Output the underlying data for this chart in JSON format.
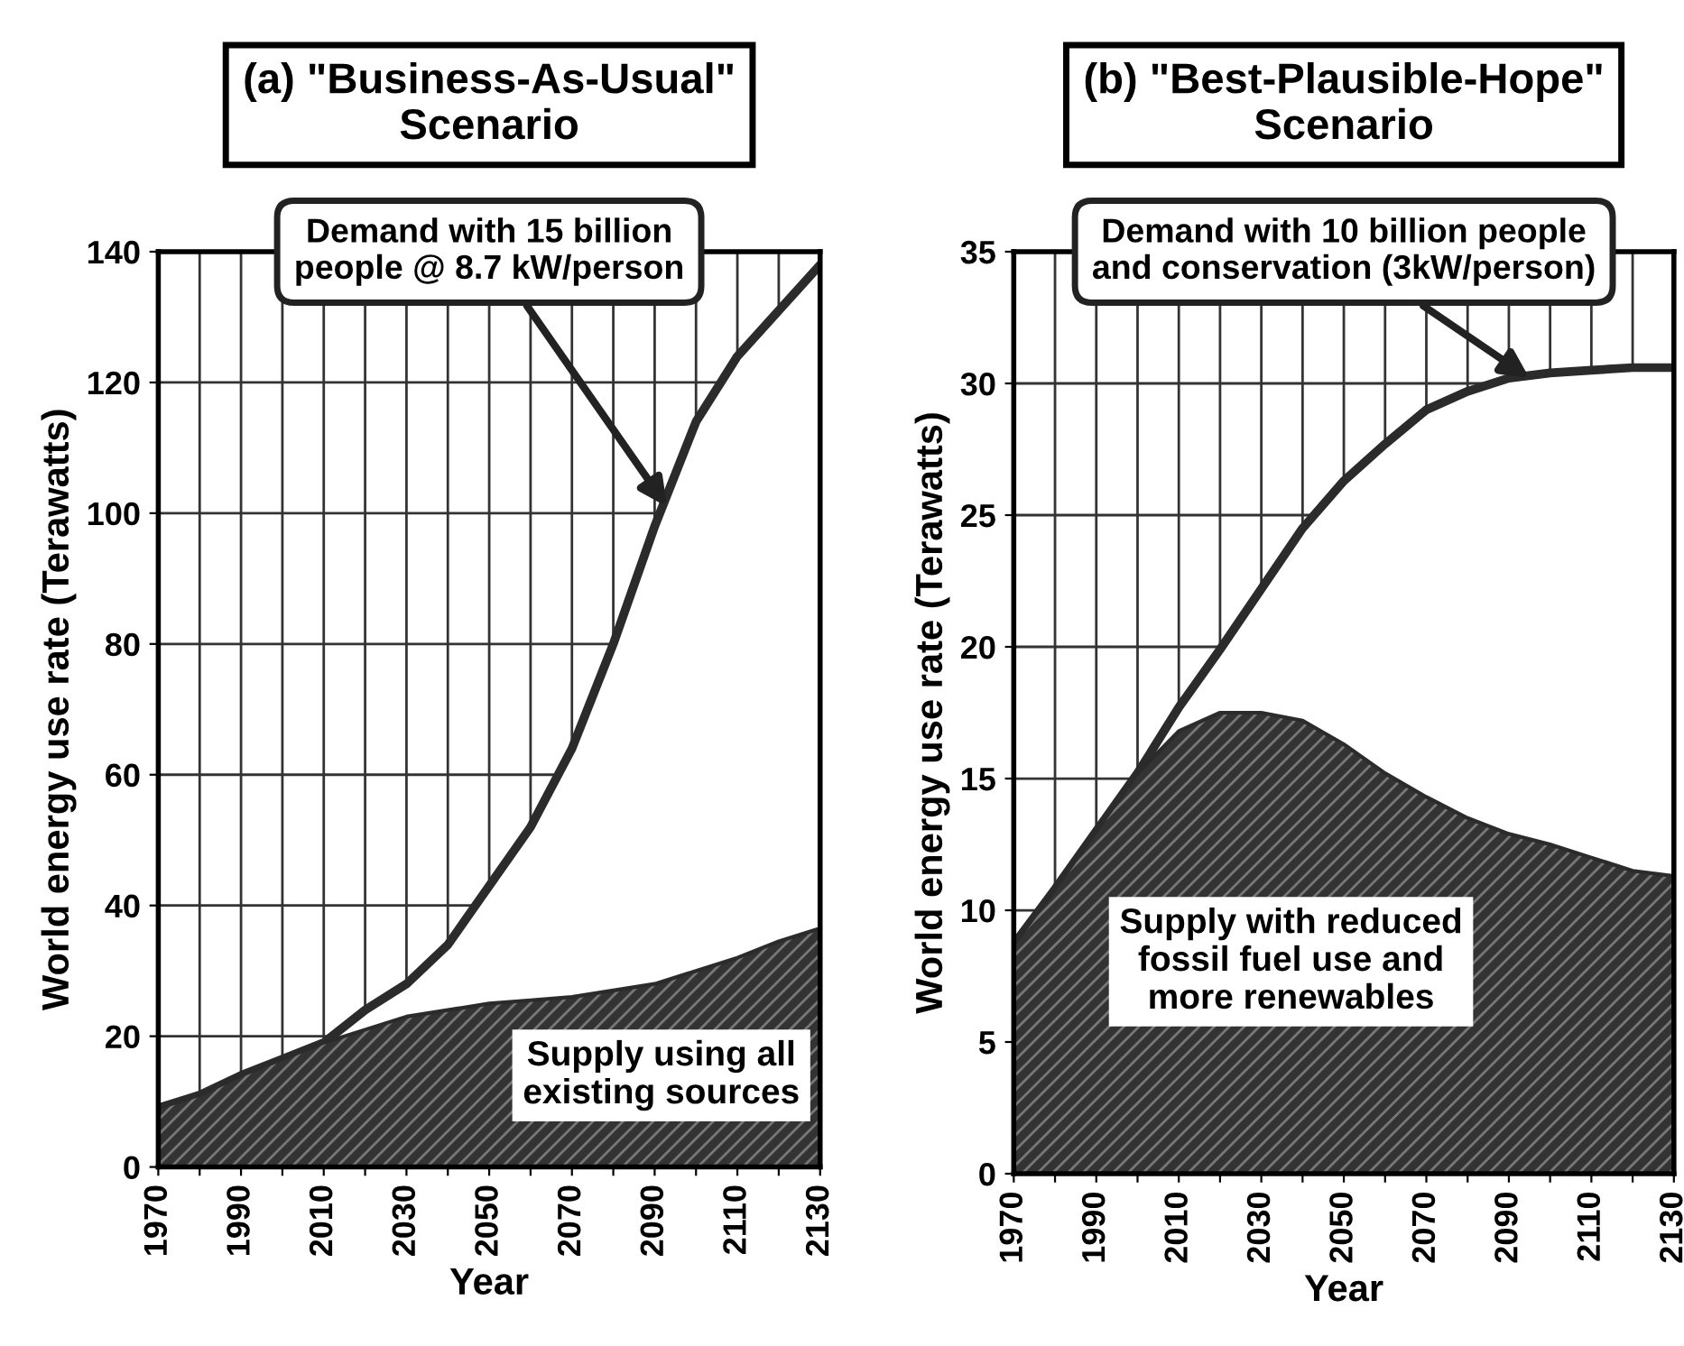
{
  "chart_data": [
    {
      "type": "area",
      "title": "(a) \"Business-As-Usual\"\nScenario",
      "xlabel": "Year",
      "ylabel": "World energy use rate (Terawatts)",
      "x": [
        1970,
        1980,
        1990,
        2000,
        2010,
        2020,
        2030,
        2040,
        2050,
        2060,
        2070,
        2080,
        2090,
        2100,
        2110,
        2120,
        2130
      ],
      "series": [
        {
          "color": "#ffffff",
          "values": [
            9,
            11,
            14,
            16.5,
            19,
            24,
            28,
            34,
            43,
            52,
            64,
            80,
            98,
            114,
            124,
            131,
            138
          ]
        },
        {
          "color": "#333333",
          "values": [
            9,
            11,
            14,
            16.5,
            19,
            21,
            23,
            24,
            25,
            25.5,
            26,
            27,
            28,
            30,
            32,
            34.5,
            36.5
          ]
        }
      ],
      "annotations": [
        {
          "text": "Demand with 15 billion\npeople @ 8.7 kW/person",
          "x": 2093,
          "y": 101
        },
        "Supply using all\nexisting sources"
      ],
      "xlim": [
        1970,
        2130
      ],
      "xticks": [
        1970,
        {
          "value": 1980,
          "label": null
        },
        1990,
        {
          "value": 2000,
          "label": null
        },
        2010,
        {
          "value": 2020,
          "label": null
        },
        2030,
        {
          "value": 2040,
          "label": null
        },
        2050,
        {
          "value": 2060,
          "label": null
        },
        2070,
        {
          "value": 2080,
          "label": null
        },
        2090,
        {
          "value": 2100,
          "label": null
        },
        2110,
        {
          "value": 2120,
          "label": null
        },
        2130
      ],
      "ylim": [
        0,
        140
      ],
      "yticks": [
        0,
        20,
        40,
        60,
        80,
        100,
        120,
        140
      ],
      "grid": true
    },
    {
      "type": "area",
      "title": "(b) \"Best-Plausible-Hope\"\nScenario",
      "xlabel": "Year",
      "ylabel": "World energy use rate (Terawatts)",
      "x": [
        1970,
        1980,
        1990,
        2000,
        2010,
        2020,
        2030,
        2040,
        2050,
        2060,
        2070,
        2080,
        2090,
        2100,
        2110,
        2120,
        2130
      ],
      "series": [
        {
          "color": "#ffffff",
          "values": [
            8.7,
            10.8,
            13,
            15.2,
            17.7,
            19.9,
            22.2,
            24.5,
            26.3,
            27.7,
            29,
            29.7,
            30.2,
            30.4,
            30.5,
            30.6,
            30.6
          ]
        },
        {
          "color": "#333333",
          "values": [
            8.7,
            10.8,
            13,
            15.2,
            16.8,
            17.5,
            17.5,
            17.2,
            16.3,
            15.2,
            14.3,
            13.5,
            12.9,
            12.5,
            12,
            11.5,
            11.3
          ]
        }
      ],
      "annotations": [
        {
          "text": "Demand with 10 billion people\nand conservation (3kW/person)",
          "x": 2095,
          "y": 30.2
        },
        "Supply with reduced\nfossil fuel use and\nmore renewables"
      ],
      "xlim": [
        1970,
        2130
      ],
      "xticks": [
        1970,
        {
          "value": 1980,
          "label": null
        },
        1990,
        {
          "value": 2000,
          "label": null
        },
        2010,
        {
          "value": 2020,
          "label": null
        },
        2030,
        {
          "value": 2040,
          "label": null
        },
        2050,
        {
          "value": 2060,
          "label": null
        },
        2070,
        {
          "value": 2080,
          "label": null
        },
        2090,
        {
          "value": 2100,
          "label": null
        },
        2110,
        {
          "value": 2120,
          "label": null
        },
        2130
      ],
      "ylim": [
        0,
        35
      ],
      "yticks": [
        0,
        5,
        10,
        15,
        20,
        25,
        30,
        35
      ],
      "grid": true
    }
  ]
}
